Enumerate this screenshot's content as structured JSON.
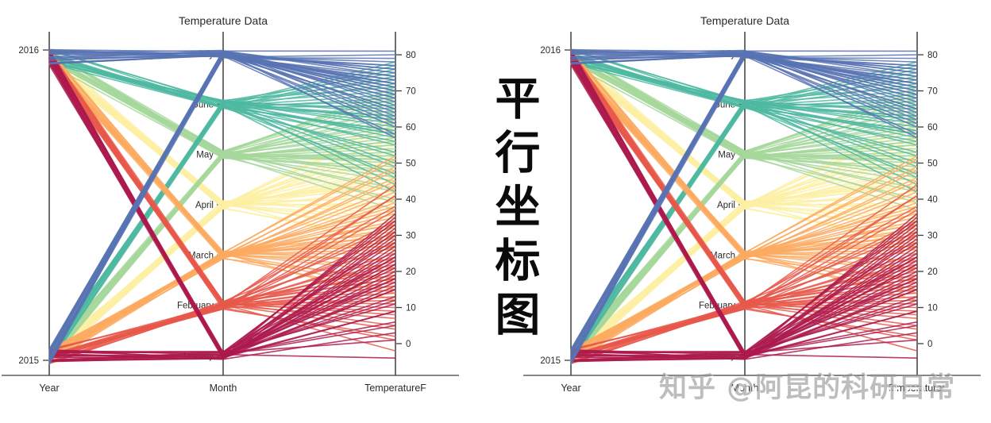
{
  "calligraphy_caption": "平行坐标图",
  "watermark": "知乎 @阿昆的科研日常",
  "chart_data": {
    "type": "parallel-coordinates",
    "instances": [
      "left",
      "right"
    ],
    "title": "Temperature Data",
    "axis_names": [
      "Year",
      "Month",
      "TemperatureF"
    ],
    "year_categories": [
      "2016",
      "2015"
    ],
    "month_categories_top_to_bottom": [
      "July",
      "June",
      "May",
      "April",
      "March",
      "February",
      "January"
    ],
    "temp_axis": {
      "ticks": [
        80,
        70,
        60,
        50,
        40,
        30,
        20,
        10,
        0
      ],
      "range_shown": [
        -8,
        82
      ]
    },
    "colors": {
      "January": "#ad1a4e",
      "February": "#e8584a",
      "March": "#fbaa60",
      "April": "#fdf0a4",
      "May": "#a6d79b",
      "June": "#4fb8a1",
      "July": "#5873b3"
    },
    "axis_color": "#3f3f3f",
    "text_color": "#2b2b2b",
    "z_order": [
      "April",
      "May",
      "June",
      "March",
      "February",
      "January",
      "July"
    ],
    "records": [
      {
        "year": "2015",
        "month": "January",
        "temps": [
          33,
          31,
          29,
          27,
          25,
          24,
          22,
          21,
          19,
          18,
          16,
          15,
          13,
          11,
          9,
          6,
          3,
          35
        ]
      },
      {
        "year": "2016",
        "month": "January",
        "temps": [
          36,
          34,
          30,
          28,
          26,
          24,
          22,
          20,
          18,
          17,
          15,
          12,
          9,
          5,
          1,
          -4,
          32,
          23
        ]
      },
      {
        "year": "2015",
        "month": "February",
        "temps": [
          -2,
          1,
          4,
          7,
          9,
          11,
          13,
          15,
          17,
          18,
          20,
          22,
          24,
          27,
          30,
          33,
          37,
          41
        ]
      },
      {
        "year": "2016",
        "month": "February",
        "temps": [
          2,
          5,
          8,
          10,
          12,
          14,
          16,
          18,
          19,
          21,
          23,
          25,
          28,
          31,
          34,
          38,
          41,
          44
        ]
      },
      {
        "year": "2015",
        "month": "March",
        "temps": [
          12,
          15,
          18,
          21,
          23,
          25,
          27,
          29,
          31,
          33,
          35,
          37,
          39,
          42,
          45,
          48,
          51,
          30
        ]
      },
      {
        "year": "2016",
        "month": "March",
        "temps": [
          14,
          17,
          20,
          23,
          26,
          28,
          30,
          32,
          34,
          36,
          38,
          40,
          43,
          46,
          49,
          52,
          33,
          27
        ]
      },
      {
        "year": "2015",
        "month": "April",
        "temps": [
          26,
          29,
          32,
          35,
          37,
          39,
          41,
          43,
          45,
          47,
          49,
          51,
          53,
          55,
          57,
          60,
          62,
          44
        ]
      },
      {
        "year": "2016",
        "month": "April",
        "temps": [
          28,
          31,
          34,
          36,
          38,
          40,
          42,
          44,
          46,
          48,
          50,
          52,
          54,
          56,
          58,
          61,
          63,
          45
        ]
      },
      {
        "year": "2015",
        "month": "May",
        "temps": [
          37,
          40,
          43,
          46,
          48,
          50,
          52,
          54,
          56,
          58,
          60,
          62,
          64,
          66,
          68,
          70,
          55,
          51
        ]
      },
      {
        "year": "2016",
        "month": "May",
        "temps": [
          39,
          42,
          45,
          47,
          49,
          51,
          53,
          55,
          57,
          59,
          61,
          63,
          65,
          67,
          69,
          71,
          56,
          52
        ]
      },
      {
        "year": "2015",
        "month": "June",
        "temps": [
          42,
          46,
          49,
          52,
          55,
          57,
          59,
          61,
          63,
          65,
          67,
          69,
          71,
          73,
          75,
          77,
          62,
          58
        ]
      },
      {
        "year": "2016",
        "month": "June",
        "temps": [
          44,
          47,
          50,
          53,
          56,
          58,
          60,
          62,
          64,
          66,
          68,
          70,
          72,
          74,
          76,
          78,
          63,
          59
        ]
      },
      {
        "year": "2015",
        "month": "July",
        "temps": [
          57,
          60,
          62,
          64,
          65,
          67,
          68,
          69,
          70,
          71,
          72,
          73,
          74,
          75,
          76,
          77,
          79,
          81
        ]
      },
      {
        "year": "2016",
        "month": "July",
        "temps": [
          58,
          61,
          63,
          65,
          66,
          68,
          69,
          70,
          71,
          72,
          73,
          74,
          75,
          76,
          77,
          78,
          80,
          72
        ]
      }
    ]
  }
}
